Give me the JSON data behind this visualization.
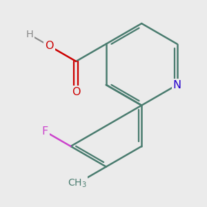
{
  "bg_color": "#ebebeb",
  "bond_color": "#4a7c6f",
  "bond_width": 1.8,
  "atom_colors": {
    "C": "#4a7c6f",
    "N": "#2200cc",
    "O": "#cc0000",
    "F": "#cc44cc",
    "H": "#888888"
  },
  "font_size": 11
}
